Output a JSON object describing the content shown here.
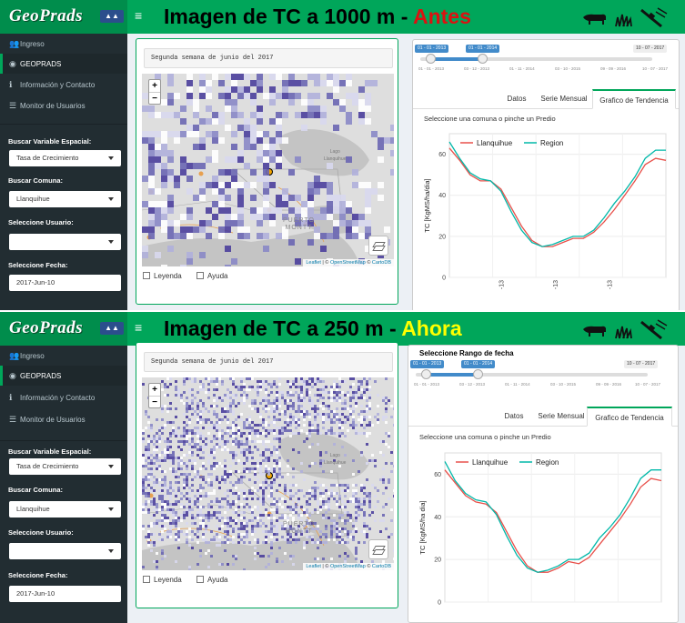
{
  "panels": [
    {
      "logo": "GeoPrads",
      "banner": {
        "main": "Imagen de TC a 1000 m - ",
        "accent": "Antes",
        "accent_color": "#dd1111"
      },
      "sidebar": {
        "items": [
          {
            "label": "Ingreso",
            "icon": "users-icon"
          },
          {
            "label": "GEOPRADS",
            "icon": "globe-icon"
          },
          {
            "label": "Información y Contacto",
            "icon": "info-icon"
          },
          {
            "label": "Monitor de Usuarios",
            "icon": "database-icon"
          }
        ],
        "variable_label": "Buscar Variable Espacial:",
        "variable_value": "Tasa de Crecimiento",
        "comuna_label": "Buscar Comuna:",
        "comuna_value": "Llanquihue",
        "usuario_label": "Seleccione Usuario:",
        "usuario_value": "",
        "fecha_label": "Seleccione Fecha:",
        "fecha_value": "2017-Jun-10"
      },
      "map": {
        "date_text": "Segunda semana de junio del 2017",
        "zoom_in": "+",
        "zoom_out": "−",
        "places": {
          "city1": "PUERTO",
          "city2": "MONTT",
          "lake1": "Lago",
          "lake2": "Llanquihue"
        },
        "attribution": {
          "leaflet": "Leaflet",
          "sep": " | © ",
          "osm": "OpenStreetMap",
          "sep2": " © ",
          "carto": "CartoDB"
        },
        "legend_check": "Leyenda",
        "help_check": "Ayuda"
      },
      "range": {
        "title": "",
        "from": "01 - 01 - 2013",
        "to": "01 - 01 - 2014",
        "max": "10 - 07 - 2017",
        "ticks": [
          "01 - 01 - 2013",
          "03 - 12 - 2013",
          "01 - 11 - 2014",
          "03 - 10 - 2015",
          "09 - 09 - 2016",
          "10 - 07 - 2017"
        ]
      },
      "tabs": {
        "datos": "Datos",
        "serie": "Serie Mensual",
        "grafico": "Grafico de Tendencia"
      },
      "hint": "Seleccione una comuna o pinche un Predio",
      "chart_data": {
        "type": "line",
        "ylabel": "TC [KgMS/ha/dia]",
        "ylim": [
          0,
          70
        ],
        "yticks": [
          0,
          20,
          40,
          60
        ],
        "xtick_labels": [
          "-13",
          "-13",
          "-13"
        ],
        "series": [
          {
            "name": "Llanquihue",
            "color": "#e8504a",
            "values": [
              63,
              57,
              50,
              47,
              47,
              43,
              34,
              25,
              18,
              15,
              15,
              17,
              19,
              19,
              22,
              27,
              33,
              40,
              47,
              55,
              58,
              57
            ]
          },
          {
            "name": "Region",
            "color": "#00b8a9",
            "values": [
              66,
              58,
              51,
              48,
              47,
              42,
              32,
              23,
              17,
              15,
              16,
              18,
              20,
              20,
              23,
              29,
              36,
              42,
              49,
              58,
              62,
              62
            ]
          }
        ]
      }
    },
    {
      "logo": "GeoPrads",
      "banner": {
        "main": "Imagen de TC a 250 m - ",
        "accent": "Ahora",
        "accent_color": "#ffff00"
      },
      "sidebar": {
        "items": [
          {
            "label": "Ingreso",
            "icon": "users-icon"
          },
          {
            "label": "GEOPRADS",
            "icon": "globe-icon"
          },
          {
            "label": "Información y Contacto",
            "icon": "info-icon"
          },
          {
            "label": "Monitor de Usuarios",
            "icon": "database-icon"
          }
        ],
        "variable_label": "Buscar Variable Espacial:",
        "variable_value": "Tasa de Crecimiento",
        "comuna_label": "Buscar Comuna:",
        "comuna_value": "Llanquihue",
        "usuario_label": "Seleccione Usuario:",
        "usuario_value": "",
        "fecha_label": "Seleccione Fecha:",
        "fecha_value": "2017-Jun-10"
      },
      "map": {
        "date_text": "Segunda semana de junio del 2017",
        "zoom_in": "+",
        "zoom_out": "−",
        "places": {
          "city1": "PUERTO",
          "city2": "MONTT",
          "lake1": "Lago",
          "lake2": "Llanquihue"
        },
        "attribution": {
          "leaflet": "Leaflet",
          "sep": " | © ",
          "osm": "OpenStreetMap",
          "sep2": " © ",
          "carto": "CartoDB"
        },
        "legend_check": "Leyenda",
        "help_check": "Ayuda"
      },
      "range": {
        "title": "Seleccione Rango de fecha",
        "from": "01 - 01 - 2013",
        "to": "01 - 01 - 2014",
        "max": "10 - 07 - 2017",
        "ticks": [
          "01 - 01 - 2013",
          "03 - 12 - 2013",
          "01 - 11 - 2014",
          "03 - 10 - 2015",
          "09 - 09 - 2016",
          "10 - 07 - 2017"
        ]
      },
      "tabs": {
        "datos": "Datos",
        "serie": "Serie Mensual",
        "grafico": "Grafico de Tendencia"
      },
      "hint": "Seleccione una comuna o pinche un Predio",
      "chart_data": {
        "type": "line",
        "ylabel": "TC [KgMS/ha dia]",
        "ylim": [
          0,
          70
        ],
        "yticks": [
          0,
          20,
          40,
          60
        ],
        "xtick_labels": [],
        "series": [
          {
            "name": "Llanquihue",
            "color": "#e8504a",
            "values": [
              62,
              56,
              50,
              47,
              46,
              42,
              33,
              24,
              17,
              14,
              14,
              16,
              19,
              18,
              21,
              27,
              33,
              39,
              46,
              54,
              58,
              57
            ]
          },
          {
            "name": "Region",
            "color": "#00b8a9",
            "values": [
              66,
              57,
              51,
              48,
              47,
              41,
              31,
              22,
              16,
              14,
              15,
              17,
              20,
              20,
              23,
              30,
              35,
              41,
              49,
              58,
              62,
              62
            ]
          }
        ]
      }
    }
  ]
}
